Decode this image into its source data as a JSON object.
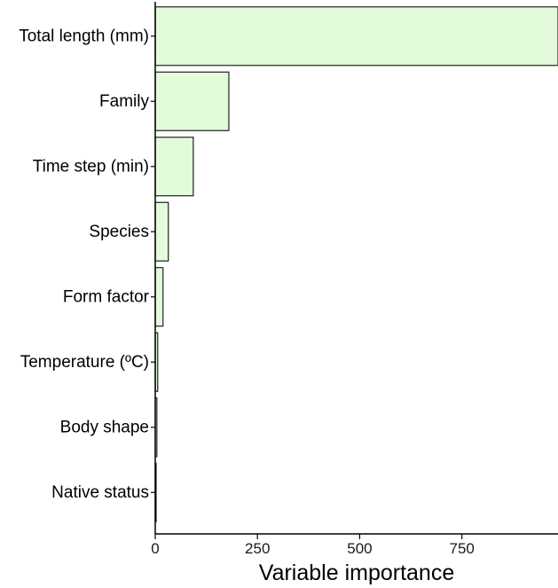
{
  "chart_data": {
    "type": "bar",
    "orientation": "horizontal",
    "categories": [
      "Total length (mm)",
      "Family",
      "Time step (min)",
      "Species",
      "Form factor",
      "Temperature (ºC)",
      "Body shape",
      "Native status"
    ],
    "values": [
      985,
      180,
      93,
      32,
      19,
      6,
      4,
      2
    ],
    "xlabel": "Variable importance",
    "ylabel": "",
    "xlim": [
      0,
      985
    ],
    "xticks": [
      0,
      250,
      500,
      750
    ],
    "bar_fill": "#e2fcdb",
    "bar_stroke": "#222222",
    "grid": false
  }
}
